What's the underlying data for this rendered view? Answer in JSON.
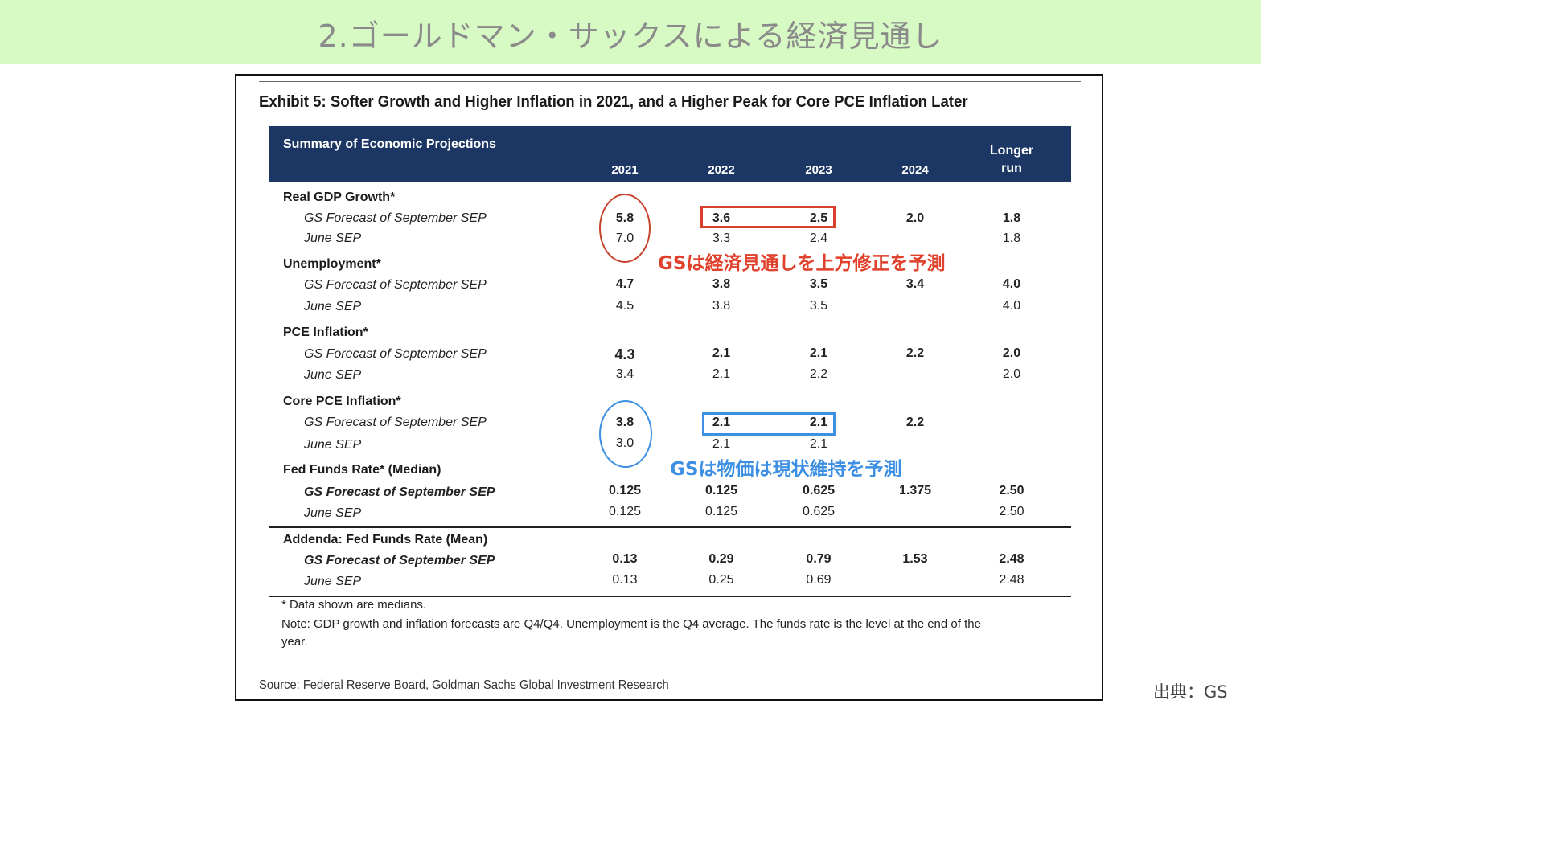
{
  "slide": {
    "title": "2.ゴールドマン・サックスによる経済見通し",
    "credit": "出典：GS"
  },
  "exhibit": {
    "title": "Exhibit 5: Softer Growth and Higher Inflation in 2021, and a Higher Peak for Core PCE Inflation Later",
    "header_label": "Summary of Economic Projections",
    "years": [
      "2021",
      "2022",
      "2023",
      "2024"
    ],
    "longer_run_line1": "Longer",
    "longer_run_line2": "run",
    "sections": [
      {
        "label": "Real GDP Growth*",
        "rows": [
          {
            "label": "GS Forecast of September SEP",
            "values": [
              "5.8",
              "3.6",
              "2.5",
              "2.0",
              "1.8"
            ]
          },
          {
            "label": "June SEP",
            "values": [
              "7.0",
              "3.3",
              "2.4",
              "",
              "1.8"
            ]
          }
        ]
      },
      {
        "label": "Unemployment*",
        "rows": [
          {
            "label": "GS Forecast of September SEP",
            "values": [
              "4.7",
              "3.8",
              "3.5",
              "3.4",
              "4.0"
            ]
          },
          {
            "label": "June SEP",
            "values": [
              "4.5",
              "3.8",
              "3.5",
              "",
              "4.0"
            ]
          }
        ]
      },
      {
        "label": "PCE Inflation*",
        "rows": [
          {
            "label": "GS Forecast of September SEP",
            "values": [
              "4.3",
              "2.1",
              "2.1",
              "2.2",
              "2.0"
            ]
          },
          {
            "label": "June SEP",
            "values": [
              "3.4",
              "2.1",
              "2.2",
              "",
              "2.0"
            ]
          }
        ]
      },
      {
        "label": "Core PCE Inflation*",
        "rows": [
          {
            "label": "GS Forecast of September SEP",
            "values": [
              "3.8",
              "2.1",
              "2.1",
              "2.2",
              ""
            ]
          },
          {
            "label": "June SEP",
            "values": [
              "3.0",
              "2.1",
              "2.1",
              "",
              ""
            ]
          }
        ]
      },
      {
        "label": "Fed Funds Rate* (Median)",
        "rows": [
          {
            "label": "GS Forecast of September SEP",
            "values": [
              "0.125",
              "0.125",
              "0.625",
              "1.375",
              "2.50"
            ]
          },
          {
            "label": "June SEP",
            "values": [
              "0.125",
              "0.125",
              "0.625",
              "",
              "2.50"
            ]
          }
        ]
      },
      {
        "label": "Addenda: Fed Funds Rate (Mean)",
        "rows": [
          {
            "label": "GS Forecast of September SEP",
            "values": [
              "0.13",
              "0.29",
              "0.79",
              "1.53",
              "2.48"
            ]
          },
          {
            "label": "June SEP",
            "values": [
              "0.13",
              "0.25",
              "0.69",
              "",
              "2.48"
            ]
          }
        ]
      }
    ],
    "footnote1": "* Data shown are medians.",
    "footnote2_line1": "Note: GDP growth and inflation forecasts are Q4/Q4.  Unemployment is the Q4 average.  The funds rate is the level at the end of the",
    "footnote2_line2": "year.",
    "source": "Source: Federal Reserve Board, Goldman Sachs Global Investment Research"
  },
  "annotations": {
    "red_text": "GSは経済見通しを上方修正を予測",
    "blue_text": "GSは物価は現状維持を予測",
    "red_color": "#e0412c",
    "blue_color": "#3c8fe2"
  },
  "colors": {
    "header_band": "#d7f9c4",
    "table_header": "#1c3764"
  }
}
